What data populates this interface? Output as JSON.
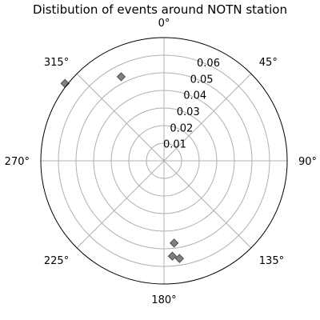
{
  "chart_data": {
    "type": "scatter",
    "projection": "polar",
    "title": "Distibution of events around NOTN station",
    "theta_zero_location": "N",
    "theta_direction": "clockwise",
    "theta_unit": "degrees",
    "angle_ticks": [
      {
        "angle": 0,
        "label": "0°"
      },
      {
        "angle": 45,
        "label": "45°"
      },
      {
        "angle": 90,
        "label": "90°"
      },
      {
        "angle": 135,
        "label": "135°"
      },
      {
        "angle": 180,
        "label": "180°"
      },
      {
        "angle": 225,
        "label": "225°"
      },
      {
        "angle": 270,
        "label": "270°"
      },
      {
        "angle": 315,
        "label": "315°"
      }
    ],
    "radial_ticks": [
      {
        "value": 0.01,
        "label": "0.01"
      },
      {
        "value": 0.02,
        "label": "0.02"
      },
      {
        "value": 0.03,
        "label": "0.03"
      },
      {
        "value": 0.04,
        "label": "0.04"
      },
      {
        "value": 0.05,
        "label": "0.05"
      },
      {
        "value": 0.06,
        "label": "0.06"
      }
    ],
    "r_lim": [
      0,
      0.07
    ],
    "radial_label_angle": 22.5,
    "grid": true,
    "marker": "diamond",
    "points": [
      {
        "theta": 308,
        "r": 0.0714
      },
      {
        "theta": 333,
        "r": 0.0536
      },
      {
        "theta": 173,
        "r": 0.0471
      },
      {
        "theta": 175,
        "r": 0.0544
      },
      {
        "theta": 171,
        "r": 0.0562
      }
    ]
  },
  "colors": {
    "marker_fill": "#808080",
    "marker_edge": "#4d4d4d",
    "grid": "#b0b0b0",
    "frame": "#000000",
    "text": "#000000"
  }
}
